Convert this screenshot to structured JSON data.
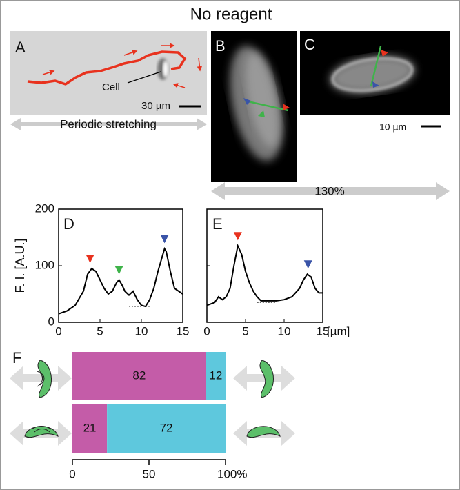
{
  "figure": {
    "title": "No reagent",
    "panel_labels": [
      "A",
      "B",
      "C",
      "D",
      "E",
      "F"
    ],
    "cell_label": "Cell",
    "scale_a": "30 µm",
    "stretch_label": "Periodic stretching",
    "scale_c": "10 µm",
    "stretch_amount": "130%"
  },
  "chart_data": [
    {
      "type": "line",
      "ylabel": "F. I. [A.U.]",
      "xlim": [
        0,
        15
      ],
      "ylim": [
        0,
        200
      ],
      "xticks": [
        0,
        5,
        10,
        15
      ],
      "yticks": [
        0,
        100,
        200
      ],
      "ytick_labels": true,
      "x": [
        0,
        1,
        2,
        3,
        3.5,
        4,
        4.5,
        5,
        5.5,
        6,
        6.5,
        7,
        7.3,
        7.7,
        8,
        8.5,
        9,
        9.5,
        10,
        10.5,
        11,
        11.5,
        12,
        12.5,
        12.8,
        13,
        13.5,
        14,
        14.5,
        15
      ],
      "series": [
        {
          "color": "#000000",
          "values": [
            15,
            20,
            30,
            55,
            85,
            95,
            90,
            75,
            60,
            50,
            55,
            70,
            75,
            65,
            55,
            48,
            55,
            40,
            30,
            28,
            40,
            60,
            90,
            115,
            130,
            125,
            90,
            60,
            55,
            50
          ]
        }
      ],
      "peak_markers": [
        {
          "x": 3.8,
          "y": 95,
          "color": "#e8321e"
        },
        {
          "x": 7.3,
          "y": 75,
          "color": "#3fb34a"
        },
        {
          "x": 12.8,
          "y": 130,
          "color": "#3a54a8"
        }
      ],
      "baseline": {
        "x": [
          8.5,
          11
        ],
        "y": 28
      }
    },
    {
      "type": "line",
      "xlabel": "[µm]",
      "xlim": [
        0,
        15
      ],
      "ylim": [
        0,
        200
      ],
      "xticks": [
        0,
        5,
        10,
        15
      ],
      "yticks": [
        0,
        100,
        200
      ],
      "ytick_labels": false,
      "x": [
        0,
        1,
        1.5,
        2,
        2.5,
        3,
        3.5,
        4,
        4.5,
        5,
        5.5,
        6,
        6.5,
        7,
        8,
        9,
        10,
        11,
        12,
        12.5,
        13,
        13.5,
        14,
        14.5,
        15
      ],
      "series": [
        {
          "color": "#000000",
          "values": [
            30,
            35,
            45,
            40,
            45,
            60,
            100,
            135,
            120,
            90,
            70,
            55,
            45,
            38,
            38,
            38,
            40,
            45,
            60,
            75,
            85,
            80,
            60,
            52,
            52
          ]
        }
      ],
      "peak_markers": [
        {
          "x": 4,
          "y": 135,
          "color": "#e8321e"
        },
        {
          "x": 13.1,
          "y": 85,
          "color": "#3a54a8"
        }
      ],
      "baseline": {
        "x": [
          6.5,
          9
        ],
        "y": 35
      }
    },
    {
      "type": "bar",
      "orientation": "horizontal",
      "stacking": "percent",
      "xlim": [
        0,
        100
      ],
      "xticks": [
        0,
        50,
        {
          "value": 100,
          "label": "100%"
        }
      ],
      "series": [
        {
          "color": "#c45ca8",
          "values": [
            82,
            21
          ]
        },
        {
          "color": "#5ec8dd",
          "values": [
            12,
            72
          ]
        }
      ]
    }
  ]
}
